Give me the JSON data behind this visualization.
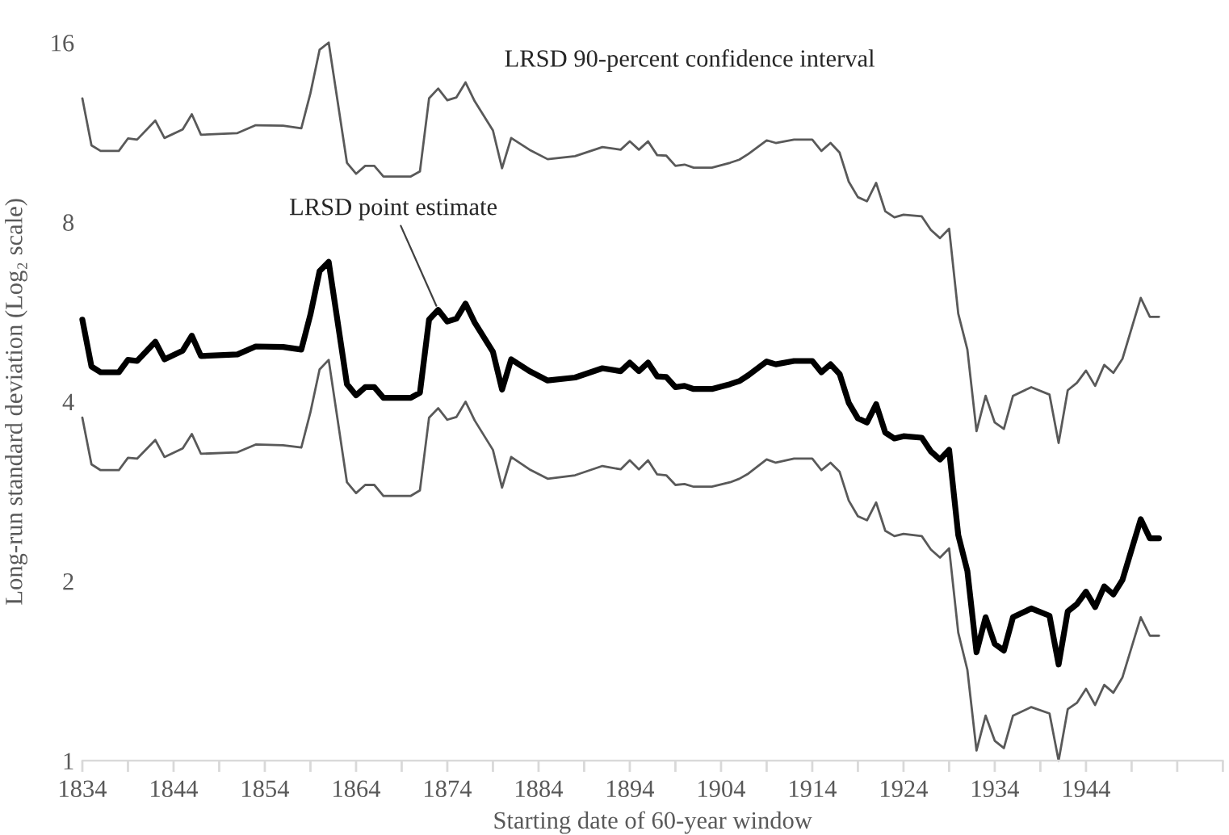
{
  "chart_data": {
    "type": "line",
    "xlabel": "Starting date of 60-year window",
    "ylabel": "Long-run standard deviation (Log₂ scale)",
    "annotations": [
      "LRSD 90-percent confidence interval",
      {
        "text": "LRSD point estimate",
        "x": 1873,
        "y": 5.7
      }
    ],
    "log": "y",
    "xlim": [
      1834,
      1959
    ],
    "xticks": [
      1834,
      {
        "value": 1839,
        "label": null
      },
      1844,
      {
        "value": 1849,
        "label": null
      },
      1854,
      {
        "value": 1859,
        "label": null
      },
      1864,
      {
        "value": 1869,
        "label": null
      },
      1874,
      {
        "value": 1879,
        "label": null
      },
      1884,
      {
        "value": 1889,
        "label": null
      },
      1894,
      {
        "value": 1899,
        "label": null
      },
      1904,
      {
        "value": 1909,
        "label": null
      },
      1914,
      {
        "value": 1919,
        "label": null
      },
      1924,
      {
        "value": 1929,
        "label": null
      },
      1934,
      {
        "value": 1939,
        "label": null
      },
      1944,
      {
        "value": 1949,
        "label": null
      },
      {
        "value": 1954,
        "label": null
      },
      {
        "value": 1959,
        "label": null
      }
    ],
    "ylim": [
      1,
      16
    ],
    "yticks": [
      1,
      2,
      4,
      8,
      16
    ],
    "grid": false,
    "marker": "none",
    "line_style": "solid",
    "series": [
      {
        "color": "#000000",
        "x": [
          1834,
          1835,
          1836,
          1838,
          1839,
          1840,
          1842,
          1843,
          1845,
          1846,
          1847,
          1851,
          1853,
          1856,
          1858,
          1859,
          1860,
          1861,
          1863,
          1864,
          1865,
          1866,
          1867,
          1870,
          1871,
          1872,
          1873,
          1874,
          1875,
          1876,
          1877,
          1879,
          1880,
          1881,
          1883,
          1885,
          1888,
          1891,
          1893,
          1894,
          1895,
          1896,
          1897,
          1898,
          1899,
          1900,
          1901,
          1903,
          1905,
          1906,
          1907,
          1909,
          1910,
          1912,
          1914,
          1915,
          1916,
          1917,
          1918,
          1919,
          1920,
          1921,
          1922,
          1923,
          1924,
          1926,
          1927,
          1928,
          1929,
          1930,
          1931,
          1932,
          1933,
          1934,
          1935,
          1936,
          1938,
          1940,
          1941,
          1942,
          1943,
          1944,
          1945,
          1946,
          1947,
          1948,
          1950,
          1951,
          1952
        ],
        "values": [
          5.49,
          4.58,
          4.48,
          4.48,
          4.7,
          4.68,
          5.04,
          4.71,
          4.87,
          5.16,
          4.77,
          4.8,
          4.95,
          4.94,
          4.89,
          5.6,
          6.62,
          6.86,
          4.28,
          4.1,
          4.23,
          4.23,
          4.06,
          4.06,
          4.14,
          5.49,
          5.7,
          5.45,
          5.51,
          5.84,
          5.43,
          4.85,
          4.19,
          4.71,
          4.5,
          4.34,
          4.39,
          4.55,
          4.5,
          4.65,
          4.5,
          4.65,
          4.41,
          4.4,
          4.23,
          4.25,
          4.2,
          4.2,
          4.28,
          4.33,
          4.43,
          4.67,
          4.62,
          4.68,
          4.68,
          4.48,
          4.62,
          4.45,
          3.98,
          3.75,
          3.69,
          3.96,
          3.55,
          3.47,
          3.5,
          3.48,
          3.3,
          3.2,
          3.32,
          2.39,
          2.08,
          1.52,
          1.74,
          1.57,
          1.53,
          1.74,
          1.8,
          1.75,
          1.45,
          1.78,
          1.83,
          1.92,
          1.81,
          1.96,
          1.9,
          2.01,
          2.54,
          2.36,
          2.36
        ]
      },
      {
        "color": "#595959",
        "x": [
          1834,
          1835,
          1836,
          1838,
          1839,
          1840,
          1842,
          1843,
          1845,
          1846,
          1847,
          1851,
          1853,
          1856,
          1858,
          1859,
          1860,
          1861,
          1863,
          1864,
          1865,
          1866,
          1867,
          1870,
          1871,
          1872,
          1873,
          1874,
          1875,
          1876,
          1877,
          1879,
          1880,
          1881,
          1883,
          1885,
          1888,
          1891,
          1893,
          1894,
          1895,
          1896,
          1897,
          1898,
          1899,
          1900,
          1901,
          1903,
          1905,
          1906,
          1907,
          1909,
          1910,
          1912,
          1914,
          1915,
          1916,
          1917,
          1918,
          1919,
          1920,
          1921,
          1922,
          1923,
          1924,
          1926,
          1927,
          1928,
          1929,
          1930,
          1931,
          1932,
          1933,
          1934,
          1935,
          1936,
          1938,
          1940,
          1941,
          1942,
          1943,
          1944,
          1945,
          1946,
          1947,
          1948,
          1950,
          1951,
          1952
        ],
        "values": [
          12.9,
          10.76,
          10.53,
          10.53,
          11.05,
          11.0,
          11.84,
          11.07,
          11.44,
          12.13,
          11.21,
          11.28,
          11.63,
          11.61,
          11.49,
          13.16,
          15.56,
          16.0,
          10.06,
          9.64,
          9.94,
          9.94,
          9.54,
          9.54,
          9.73,
          12.9,
          13.4,
          12.81,
          12.95,
          13.72,
          12.76,
          11.4,
          9.85,
          11.07,
          10.58,
          10.2,
          10.32,
          10.69,
          10.58,
          10.93,
          10.58,
          10.93,
          10.36,
          10.34,
          9.94,
          9.99,
          9.87,
          9.87,
          10.06,
          10.18,
          10.41,
          10.97,
          10.86,
          11.0,
          11.0,
          10.53,
          10.86,
          10.46,
          9.35,
          8.81,
          8.67,
          9.31,
          8.34,
          8.15,
          8.23,
          8.18,
          7.76,
          7.52,
          7.8,
          5.62,
          4.89,
          3.57,
          4.09,
          3.69,
          3.6,
          4.09,
          4.23,
          4.11,
          3.41,
          4.18,
          4.3,
          4.51,
          4.25,
          4.61,
          4.47,
          4.72,
          5.97,
          5.55,
          5.55
        ]
      },
      {
        "color": "#595959",
        "x": [
          1834,
          1835,
          1836,
          1838,
          1839,
          1840,
          1842,
          1843,
          1845,
          1846,
          1847,
          1851,
          1853,
          1856,
          1858,
          1859,
          1860,
          1861,
          1863,
          1864,
          1865,
          1866,
          1867,
          1870,
          1871,
          1872,
          1873,
          1874,
          1875,
          1876,
          1877,
          1879,
          1880,
          1881,
          1883,
          1885,
          1888,
          1891,
          1893,
          1894,
          1895,
          1896,
          1897,
          1898,
          1899,
          1900,
          1901,
          1903,
          1905,
          1906,
          1907,
          1909,
          1910,
          1912,
          1914,
          1915,
          1916,
          1917,
          1918,
          1919,
          1920,
          1921,
          1922,
          1923,
          1924,
          1926,
          1927,
          1928,
          1929,
          1930,
          1931,
          1932,
          1933,
          1934,
          1935,
          1936,
          1938,
          1940,
          1941,
          1942,
          1943,
          1944,
          1945,
          1946,
          1947,
          1948,
          1950,
          1951,
          1952
        ],
        "values": [
          3.76,
          3.14,
          3.07,
          3.07,
          3.22,
          3.21,
          3.45,
          3.23,
          3.34,
          3.53,
          3.27,
          3.29,
          3.39,
          3.38,
          3.35,
          3.84,
          4.53,
          4.7,
          2.93,
          2.81,
          2.9,
          2.9,
          2.78,
          2.78,
          2.84,
          3.76,
          3.9,
          3.73,
          3.77,
          4.0,
          3.72,
          3.32,
          2.87,
          3.23,
          3.08,
          2.97,
          3.01,
          3.12,
          3.08,
          3.19,
          3.08,
          3.19,
          3.02,
          3.01,
          2.9,
          2.91,
          2.88,
          2.88,
          2.93,
          2.97,
          3.03,
          3.2,
          3.16,
          3.21,
          3.21,
          3.07,
          3.16,
          3.05,
          2.73,
          2.57,
          2.53,
          2.71,
          2.43,
          2.38,
          2.4,
          2.38,
          2.26,
          2.19,
          2.27,
          1.64,
          1.42,
          1.04,
          1.19,
          1.08,
          1.05,
          1.19,
          1.23,
          1.2,
          1.0,
          1.22,
          1.25,
          1.32,
          1.24,
          1.34,
          1.3,
          1.38,
          1.74,
          1.62,
          1.62
        ]
      }
    ]
  }
}
